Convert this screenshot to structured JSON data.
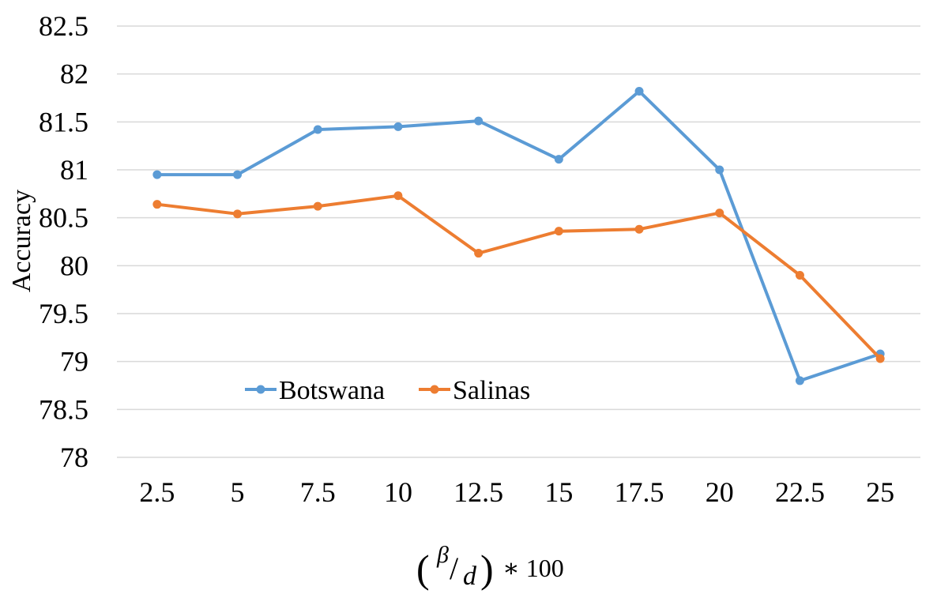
{
  "chart_data": {
    "type": "line",
    "title": "",
    "ylabel": "Accuracy",
    "xlabel": {
      "numerator": "β",
      "denominator": "d",
      "multiplier": "∗ 100"
    },
    "categories": [
      "2.5",
      "5",
      "7.5",
      "10",
      "12.5",
      "15",
      "17.5",
      "20",
      "22.5",
      "25"
    ],
    "y_ticks": [
      "82.5",
      "82",
      "81.5",
      "81",
      "80.5",
      "80",
      "79.5",
      "79",
      "78.5",
      "78"
    ],
    "ylim": [
      78,
      82.5
    ],
    "y_step": 0.5,
    "grid": true,
    "legend_position": "lower-left inside",
    "series": [
      {
        "name": "Botswana",
        "color": "#5b9bd5",
        "values": [
          80.95,
          80.95,
          81.42,
          81.45,
          81.51,
          81.11,
          81.82,
          81.0,
          78.8,
          79.08
        ]
      },
      {
        "name": "Salinas",
        "color": "#ed7d31",
        "values": [
          80.64,
          80.54,
          80.62,
          80.73,
          80.13,
          80.36,
          80.38,
          80.55,
          79.9,
          79.03
        ]
      }
    ]
  }
}
